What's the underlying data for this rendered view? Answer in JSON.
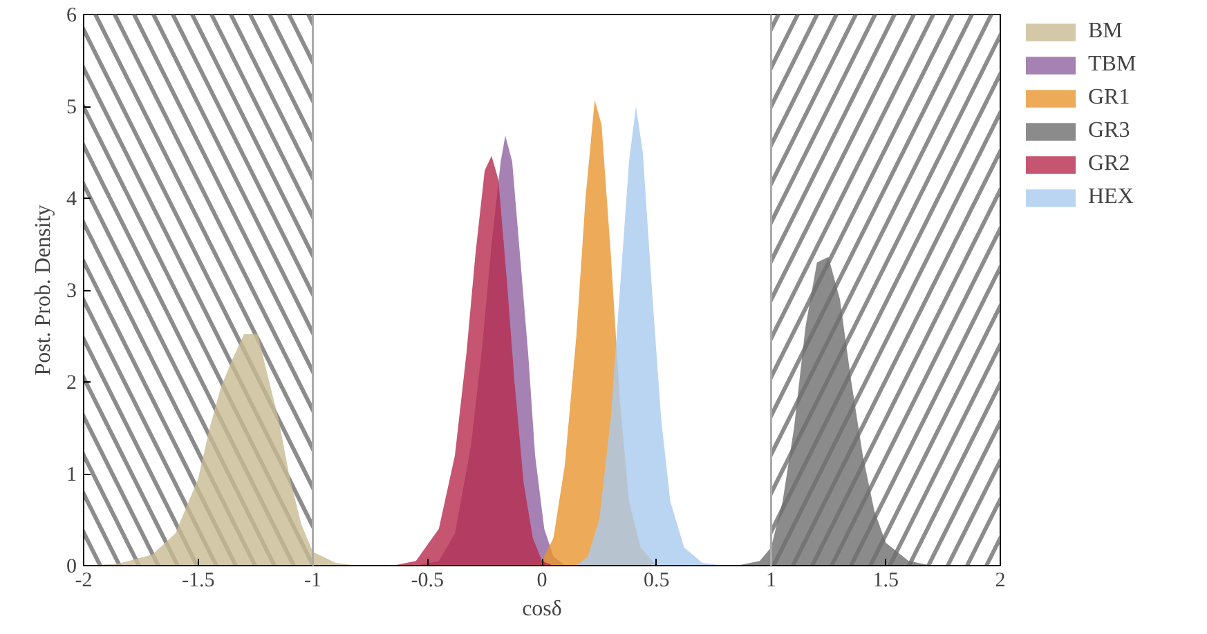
{
  "chart_data": {
    "type": "area",
    "xlabel": "cosδ",
    "ylabel": "Post. Prob. Density",
    "xlim": [
      -2,
      2
    ],
    "ylim": [
      0,
      6
    ],
    "xticks": [
      -2,
      -1.5,
      -1,
      -0.5,
      0,
      0.5,
      1,
      1.5,
      2
    ],
    "yticks": [
      0,
      1,
      2,
      3,
      4,
      5,
      6
    ],
    "grid": false,
    "legend": "right",
    "ref_lines": [
      {
        "axis": "x",
        "value": -1,
        "color": "#aaaaaa"
      },
      {
        "axis": "x",
        "value": 1,
        "color": "#aaaaaa"
      }
    ],
    "bands": [
      {
        "axis": "x",
        "from": -2,
        "to": -1,
        "color": "#808080"
      },
      {
        "axis": "x",
        "from": 1,
        "to": 2,
        "color": "#808080"
      }
    ],
    "series": [
      {
        "name": "BM",
        "color": "#c8bb93",
        "x": [
          -2.0,
          -1.85,
          -1.7,
          -1.6,
          -1.5,
          -1.45,
          -1.4,
          -1.35,
          -1.3,
          -1.24,
          -1.2,
          -1.15,
          -1.1,
          -1.05,
          -1.0,
          -0.9,
          -0.8
        ],
        "values": [
          0,
          0.02,
          0.12,
          0.35,
          0.95,
          1.5,
          1.95,
          2.25,
          2.52,
          2.52,
          2.1,
          1.6,
          0.95,
          0.45,
          0.15,
          0.03,
          0
        ]
      },
      {
        "name": "TBM",
        "color": "#8e63a0",
        "x": [
          -0.55,
          -0.45,
          -0.38,
          -0.31,
          -0.26,
          -0.22,
          -0.18,
          -0.16,
          -0.13,
          -0.1,
          -0.06,
          -0.03,
          0.01,
          0.05,
          0.1
        ],
        "values": [
          0,
          0.05,
          0.35,
          1.3,
          2.4,
          3.5,
          4.4,
          4.68,
          4.4,
          3.5,
          2.3,
          1.2,
          0.4,
          0.1,
          0
        ]
      },
      {
        "name": "GR1",
        "color": "#e8952e",
        "x": [
          -0.05,
          0.0,
          0.05,
          0.1,
          0.15,
          0.19,
          0.23,
          0.26,
          0.3,
          0.34,
          0.38,
          0.43,
          0.5
        ],
        "values": [
          0,
          0.05,
          0.3,
          1.1,
          2.5,
          4.0,
          5.07,
          4.8,
          3.4,
          1.8,
          0.7,
          0.2,
          0
        ]
      },
      {
        "name": "GR3",
        "color": "#6e6e6e",
        "x": [
          0.85,
          0.95,
          1.0,
          1.05,
          1.1,
          1.15,
          1.2,
          1.25,
          1.3,
          1.35,
          1.4,
          1.45,
          1.5,
          1.6,
          1.7
        ],
        "values": [
          0,
          0.05,
          0.2,
          0.7,
          1.5,
          2.6,
          3.3,
          3.36,
          2.9,
          2.0,
          1.2,
          0.6,
          0.25,
          0.05,
          0
        ]
      },
      {
        "name": "GR2",
        "color": "#b72a4d",
        "x": [
          -0.65,
          -0.55,
          -0.45,
          -0.38,
          -0.33,
          -0.29,
          -0.25,
          -0.22,
          -0.19,
          -0.15,
          -0.12,
          -0.08,
          -0.04,
          0.0,
          0.05
        ],
        "values": [
          0,
          0.05,
          0.4,
          1.2,
          2.3,
          3.4,
          4.3,
          4.46,
          4.2,
          3.0,
          2.0,
          0.9,
          0.3,
          0.05,
          0
        ]
      },
      {
        "name": "HEX",
        "color": "#a9cbef",
        "x": [
          0.15,
          0.2,
          0.25,
          0.3,
          0.34,
          0.38,
          0.41,
          0.44,
          0.48,
          0.52,
          0.56,
          0.62,
          0.7,
          0.8
        ],
        "values": [
          0,
          0.1,
          0.5,
          1.6,
          3.0,
          4.4,
          5.0,
          4.5,
          3.0,
          1.6,
          0.7,
          0.2,
          0.03,
          0
        ]
      }
    ]
  }
}
